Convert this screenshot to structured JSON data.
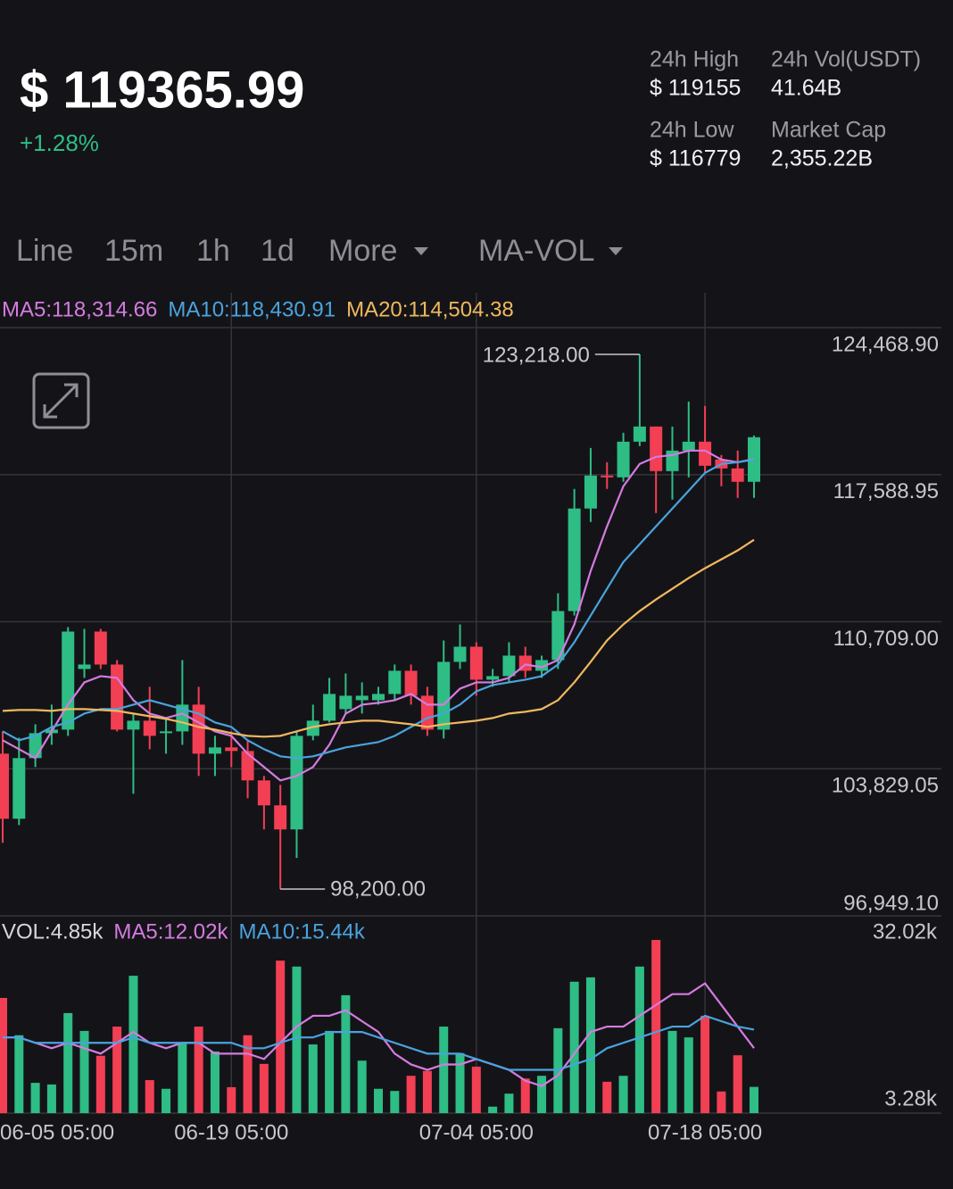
{
  "header": {
    "price": "$ 119365.99",
    "change": "+1.28%",
    "stats": [
      {
        "label": "24h High",
        "value": "$ 119155"
      },
      {
        "label": "24h Vol(USDT)",
        "value": "41.64B"
      },
      {
        "label": "24h Low",
        "value": "$ 116779"
      },
      {
        "label": "Market Cap",
        "value": "2,355.22B"
      }
    ]
  },
  "tabs": [
    "Line",
    "15m",
    "1h",
    "1d",
    "More",
    "MA-VOL"
  ],
  "active_tab": 3,
  "chart_data": [
    {
      "type": "candlestick",
      "up_color": "#2ebd85",
      "down_color": "#f23f53",
      "grid": true,
      "categories": [
        "06-05 05:00",
        null,
        null,
        null,
        null,
        null,
        null,
        null,
        null,
        null,
        null,
        null,
        null,
        null,
        "06-19 05:00",
        null,
        null,
        null,
        null,
        null,
        null,
        null,
        null,
        null,
        null,
        null,
        null,
        null,
        null,
        "07-04 05:00",
        null,
        null,
        null,
        null,
        null,
        null,
        null,
        null,
        null,
        null,
        null,
        null,
        null,
        "07-18 05:00",
        null,
        null,
        null
      ],
      "open": [
        104536,
        101492,
        104328,
        105495,
        105662,
        108498,
        110249,
        108706,
        105662,
        106079,
        105495,
        105579,
        106830,
        104536,
        104828,
        104661,
        103285,
        102118,
        100992,
        105370,
        106079,
        106621,
        107038,
        107038,
        107330,
        108414,
        107247,
        105662,
        108831,
        109540,
        107997,
        108164,
        109123,
        108414,
        108915,
        111208,
        116004,
        117547,
        117463,
        119131,
        119840,
        117755,
        118714,
        119131,
        118297,
        117880,
        117255
      ],
      "high": [
        105579,
        105287,
        105912,
        106830,
        110458,
        110374,
        110374,
        108915,
        106413,
        107664,
        106204,
        108915,
        107664,
        105370,
        105579,
        105162,
        103494,
        103077,
        105579,
        106830,
        108081,
        108289,
        107872,
        107664,
        108706,
        108706,
        107664,
        109832,
        110583,
        109749,
        108498,
        109749,
        109540,
        109123,
        112042,
        116921,
        118839,
        118172,
        119548,
        123218,
        119840,
        119840,
        121008,
        120799,
        118506,
        118714,
        119423
      ],
      "low": [
        100366,
        101200,
        103911,
        104953,
        105370,
        108081,
        108498,
        105579,
        102660,
        104745,
        104536,
        104953,
        103494,
        103494,
        103911,
        102451,
        100992,
        98200,
        99657,
        105162,
        105996,
        106413,
        106413,
        106830,
        107038,
        106830,
        105370,
        105245,
        108498,
        107247,
        107664,
        107872,
        108081,
        108081,
        108498,
        111000,
        115378,
        116921,
        117255,
        118923,
        115795,
        116421,
        117463,
        117672,
        117046,
        116504,
        116504
      ],
      "close": [
        101492,
        104328,
        105495,
        105662,
        110249,
        108706,
        108706,
        105662,
        106079,
        105370,
        105579,
        106830,
        104536,
        104828,
        104661,
        103285,
        102118,
        100992,
        105370,
        106079,
        107330,
        107247,
        107247,
        107330,
        108414,
        107247,
        105662,
        108831,
        109540,
        107997,
        108164,
        109123,
        108414,
        108915,
        111208,
        116004,
        117547,
        117463,
        119131,
        119840,
        117755,
        118714,
        119131,
        118005,
        117880,
        117255,
        119340
      ],
      "ylim": [
        96949.1,
        124468.9
      ],
      "yticks": [
        {
          "value": 96949.1,
          "label": "96,949.10"
        },
        {
          "value": 103829.05,
          "label": "103,829.05"
        },
        {
          "value": 110709.0,
          "label": "110,709.00"
        },
        {
          "value": 117588.95,
          "label": "117,588.95"
        },
        {
          "value": 124468.9,
          "label": "124,468.90"
        }
      ],
      "series": [
        {
          "name": "MA5:118,314.66",
          "color": "#d57be0",
          "values": [
            105162,
            104745,
            104328,
            105579,
            106830,
            107872,
            108164,
            108081,
            107038,
            106413,
            106204,
            106413,
            105996,
            105579,
            105370,
            104536,
            103911,
            103285,
            103494,
            103911,
            104953,
            106413,
            106830,
            106913,
            107038,
            107330,
            106830,
            106830,
            107580,
            107872,
            107872,
            108081,
            108706,
            108581,
            108915,
            110583,
            113085,
            115170,
            117046,
            118089,
            118422,
            118506,
            118714,
            118714,
            118297,
            118172,
            118314
          ]
        },
        {
          "name": "MA10:118,430.91",
          "color": "#4aa3df",
          "values": [
            105579,
            105162,
            105370,
            105787,
            105996,
            106413,
            106621,
            106621,
            106830,
            107038,
            106830,
            106621,
            106413,
            105996,
            105787,
            105162,
            104745,
            104411,
            104328,
            104411,
            104620,
            104828,
            104953,
            105078,
            105370,
            105787,
            106204,
            106413,
            106830,
            107455,
            107747,
            107872,
            107997,
            108164,
            108706,
            109749,
            111000,
            112251,
            113502,
            114336,
            115170,
            116004,
            116838,
            117672,
            118089,
            118172,
            118297
          ]
        },
        {
          "name": "MA20:114,504.38",
          "color": "#f0b860",
          "values": [
            106538,
            106579,
            106579,
            106538,
            106621,
            106621,
            106579,
            106538,
            106413,
            106288,
            106163,
            105996,
            105787,
            105662,
            105495,
            105370,
            105329,
            105370,
            105579,
            105787,
            105912,
            105996,
            106079,
            106079,
            105996,
            105912,
            105787,
            105912,
            105996,
            106079,
            106204,
            106413,
            106496,
            106621,
            107038,
            107872,
            108831,
            109832,
            110583,
            111208,
            111750,
            112251,
            112751,
            113210,
            113627,
            114044,
            114544
          ]
        }
      ],
      "annotations": {
        "high_label": "123,218.00",
        "low_label": "98,200.00"
      }
    },
    {
      "type": "bar",
      "label": "VOL:4.85k",
      "values": [
        21300,
        14400,
        5600,
        5300,
        18500,
        15200,
        10600,
        16000,
        25400,
        6100,
        4500,
        13000,
        16000,
        11400,
        4800,
        14400,
        9100,
        28200,
        27100,
        12700,
        15200,
        21800,
        9700,
        4500,
        4100,
        6900,
        7800,
        16000,
        11100,
        8600,
        1200,
        3600,
        6400,
        6900,
        15700,
        24300,
        25100,
        5800,
        6900,
        27100,
        32020,
        15200,
        14000,
        18000,
        4000,
        10700,
        4850
      ],
      "ylim": [
        0,
        32020
      ],
      "yticks": [
        {
          "value": 3280,
          "label": "3.28k"
        },
        {
          "value": 32020,
          "label": "32.02k"
        }
      ],
      "series": [
        {
          "name": "MA5:12.02k",
          "color": "#d57be0",
          "values": [
            14000,
            14000,
            13000,
            12000,
            13000,
            12000,
            11000,
            13000,
            15000,
            13000,
            12000,
            13000,
            13000,
            11000,
            11000,
            11000,
            10000,
            13000,
            16000,
            18000,
            18000,
            19000,
            17000,
            15000,
            11000,
            9000,
            8000,
            9000,
            9000,
            10000,
            9000,
            8000,
            6000,
            5000,
            7000,
            11000,
            15000,
            16000,
            16000,
            18000,
            20000,
            22000,
            22000,
            24000,
            20000,
            16000,
            12020
          ]
        },
        {
          "name": "MA10:15.44k",
          "color": "#4aa3df",
          "values": [
            14000,
            14000,
            13000,
            13000,
            13000,
            13000,
            13000,
            13000,
            14000,
            13000,
            13000,
            13000,
            13000,
            13000,
            13000,
            12000,
            12000,
            13000,
            14000,
            14000,
            15000,
            15000,
            15000,
            14000,
            13000,
            12000,
            11000,
            11000,
            11000,
            10000,
            9000,
            8000,
            8000,
            8000,
            8000,
            9000,
            10000,
            12000,
            13000,
            14000,
            15000,
            16000,
            16000,
            18000,
            17000,
            16000,
            15440
          ]
        }
      ]
    }
  ]
}
